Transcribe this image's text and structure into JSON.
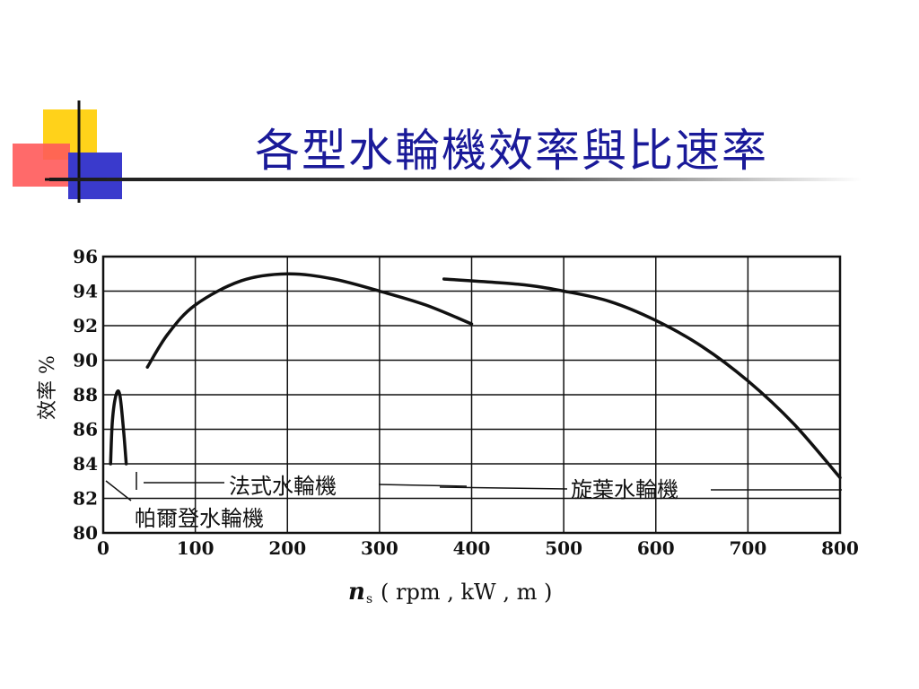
{
  "slide": {
    "title": "各型水輪機效率與比速率"
  },
  "chart_data": {
    "type": "line",
    "xlabel": "n",
    "xlabel_sub": "s",
    "xlabel_units": "( rpm , kW , m )",
    "ylabel": "效率 %",
    "xlim": [
      0,
      800
    ],
    "ylim": [
      80,
      96
    ],
    "x_ticks": [
      "0",
      "100",
      "200",
      "300",
      "400",
      "500",
      "600",
      "700",
      "800"
    ],
    "y_ticks": [
      "80",
      "82",
      "84",
      "86",
      "88",
      "90",
      "92",
      "94",
      "96"
    ],
    "grid": true,
    "series": [
      {
        "name": "帕爾登水輪機",
        "points": [
          [
            8,
            84
          ],
          [
            10,
            86.5
          ],
          [
            14,
            88
          ],
          [
            18,
            88
          ],
          [
            22,
            86
          ],
          [
            25,
            84
          ]
        ]
      },
      {
        "name": "法式水輪機",
        "points": [
          [
            48,
            89.6
          ],
          [
            70,
            91.5
          ],
          [
            100,
            93.2
          ],
          [
            150,
            94.6
          ],
          [
            200,
            95
          ],
          [
            250,
            94.7
          ],
          [
            300,
            94
          ],
          [
            350,
            93.2
          ],
          [
            400,
            92.1
          ]
        ]
      },
      {
        "name": "旋葉水輪機",
        "points": [
          [
            370,
            94.7
          ],
          [
            450,
            94.4
          ],
          [
            500,
            94
          ],
          [
            550,
            93.4
          ],
          [
            600,
            92.3
          ],
          [
            650,
            90.8
          ],
          [
            700,
            88.8
          ],
          [
            750,
            86.3
          ],
          [
            800,
            83.2
          ]
        ]
      }
    ],
    "annotations": {
      "francis": "法式水輪機",
      "kaplan": "旋葉水輪機",
      "pelton": "帕爾登水輪機"
    }
  }
}
